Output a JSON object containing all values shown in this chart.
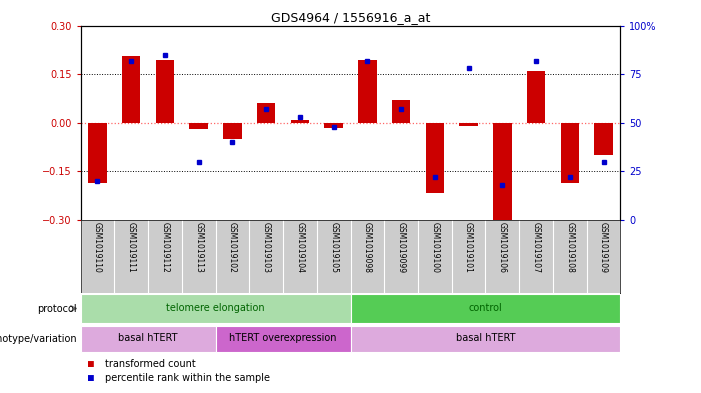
{
  "title": "GDS4964 / 1556916_a_at",
  "samples": [
    "GSM1019110",
    "GSM1019111",
    "GSM1019112",
    "GSM1019113",
    "GSM1019102",
    "GSM1019103",
    "GSM1019104",
    "GSM1019105",
    "GSM1019098",
    "GSM1019099",
    "GSM1019100",
    "GSM1019101",
    "GSM1019106",
    "GSM1019107",
    "GSM1019108",
    "GSM1019109"
  ],
  "bar_values": [
    -0.185,
    0.205,
    0.195,
    -0.02,
    -0.05,
    0.06,
    0.01,
    -0.015,
    0.195,
    0.07,
    -0.215,
    -0.01,
    -0.31,
    0.16,
    -0.185,
    -0.1
  ],
  "dot_values_pct": [
    20,
    82,
    85,
    30,
    40,
    57,
    53,
    48,
    82,
    57,
    22,
    78,
    18,
    82,
    22,
    30
  ],
  "ylim_left": [
    -0.3,
    0.3
  ],
  "ylim_right": [
    0,
    100
  ],
  "bar_color": "#cc0000",
  "dot_color": "#0000cc",
  "dotted_line_color": "#000000",
  "zero_line_color": "#ff6666",
  "protocol_regions": [
    {
      "label": "telomere elongation",
      "start": 0,
      "end": 7,
      "color": "#aaddaa"
    },
    {
      "label": "control",
      "start": 8,
      "end": 15,
      "color": "#55cc55"
    }
  ],
  "genotype_regions": [
    {
      "label": "basal hTERT",
      "start": 0,
      "end": 3,
      "color": "#ddaadd"
    },
    {
      "label": "hTERT overexpression",
      "start": 4,
      "end": 7,
      "color": "#cc66cc"
    },
    {
      "label": "basal hTERT",
      "start": 8,
      "end": 15,
      "color": "#ddaadd"
    }
  ],
  "legend_red": "transformed count",
  "legend_blue": "percentile rank within the sample",
  "bg_color": "#ffffff",
  "tick_color_left": "#cc0000",
  "tick_color_right": "#0000cc",
  "protocol_label": "protocol",
  "genotype_label": "genotype/variation",
  "tick_bg_color": "#cccccc"
}
